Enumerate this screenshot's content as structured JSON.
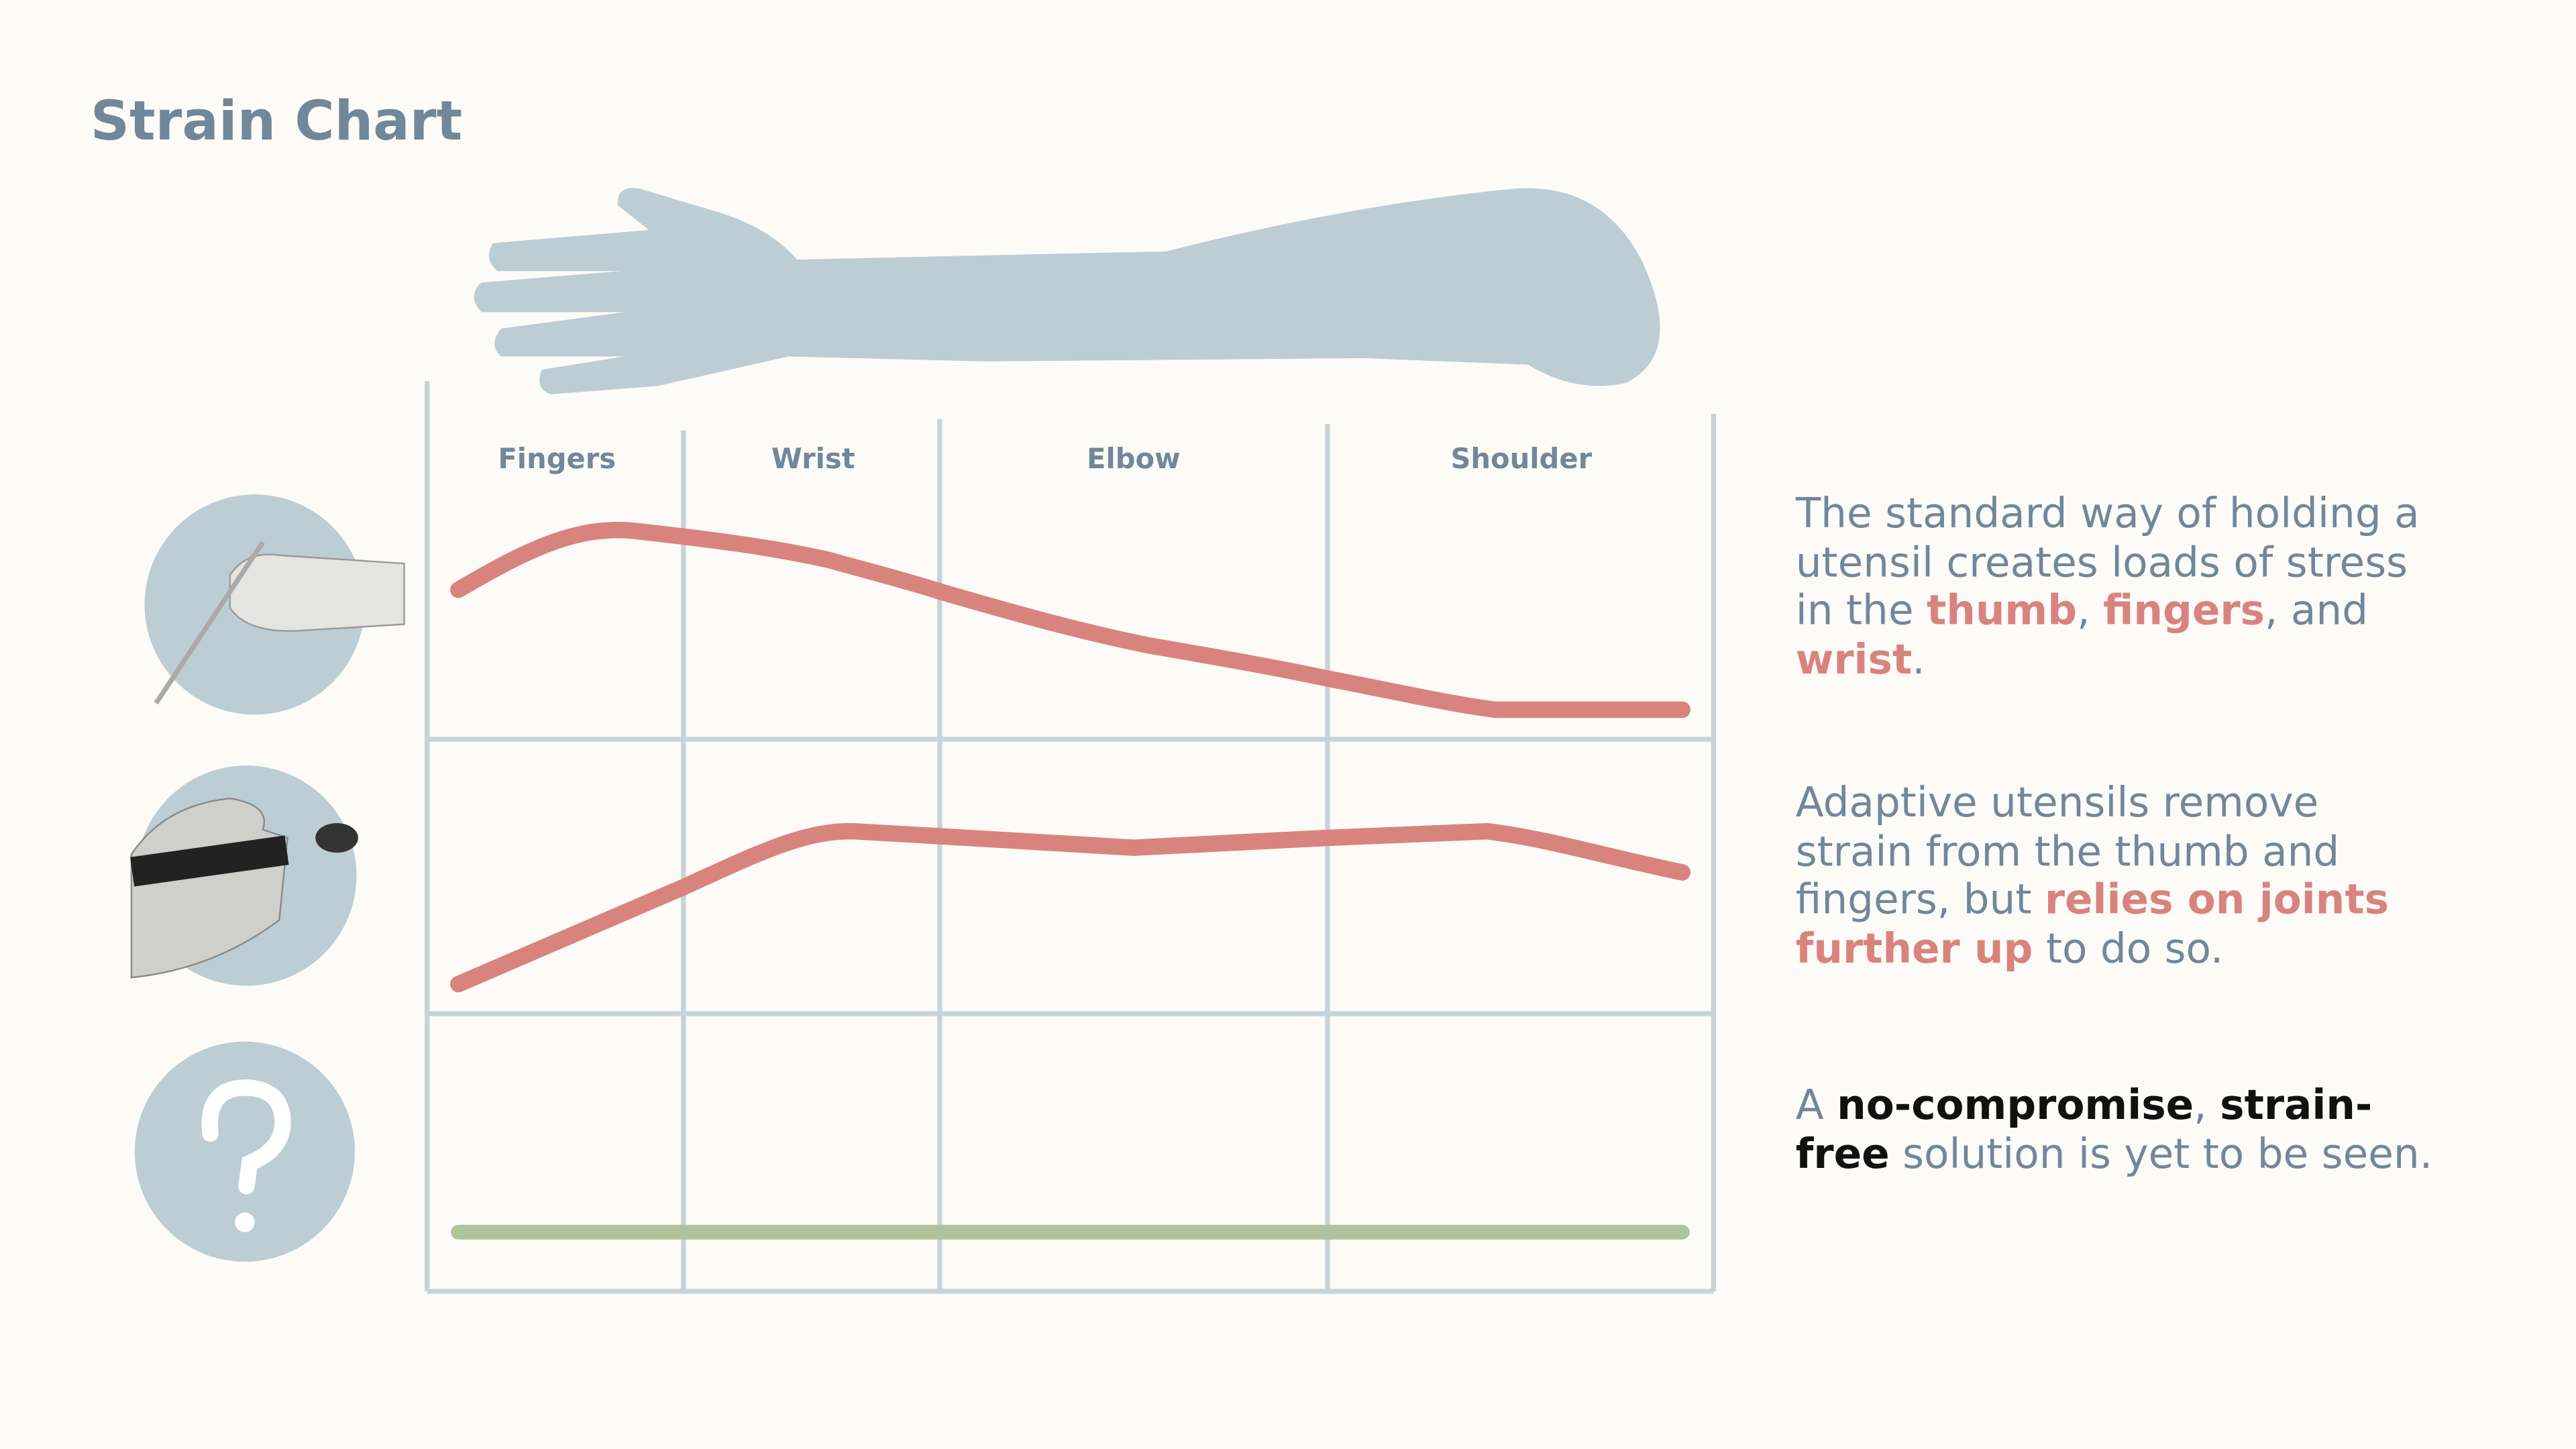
{
  "title": "Strain Chart",
  "columns": [
    "Fingers",
    "Wrist",
    "Elbow",
    "Shoulder"
  ],
  "notes": [
    {
      "segments": [
        {
          "text": "The standard way of holding a utensil creates loads of stress in the ",
          "color": "#71879a",
          "bold": false
        },
        {
          "text": "thumb",
          "color": "#d9837f",
          "bold": true
        },
        {
          "text": ", ",
          "color": "#71879a",
          "bold": false
        },
        {
          "text": "fingers",
          "color": "#d9837f",
          "bold": true
        },
        {
          "text": ", and ",
          "color": "#71879a",
          "bold": false
        },
        {
          "text": "wrist",
          "color": "#d9837f",
          "bold": true
        },
        {
          "text": ".",
          "color": "#71879a",
          "bold": false
        }
      ]
    },
    {
      "segments": [
        {
          "text": "Adaptive utensils remove strain from the thumb and fingers, but ",
          "color": "#71879a",
          "bold": false
        },
        {
          "text": "relies on joints further up",
          "color": "#d9837f",
          "bold": true
        },
        {
          "text": " to do so.",
          "color": "#71879a",
          "bold": false
        }
      ]
    },
    {
      "segments": [
        {
          "text": "A ",
          "color": "#71879a",
          "bold": false
        },
        {
          "text": "no-compromise",
          "color": "#111111",
          "bold": true
        },
        {
          "text": ", ",
          "color": "#71879a",
          "bold": false
        },
        {
          "text": "strain-free",
          "color": "#111111",
          "bold": true
        },
        {
          "text": " solution is yet to be seen.",
          "color": "#71879a",
          "bold": false
        }
      ]
    }
  ]
}
